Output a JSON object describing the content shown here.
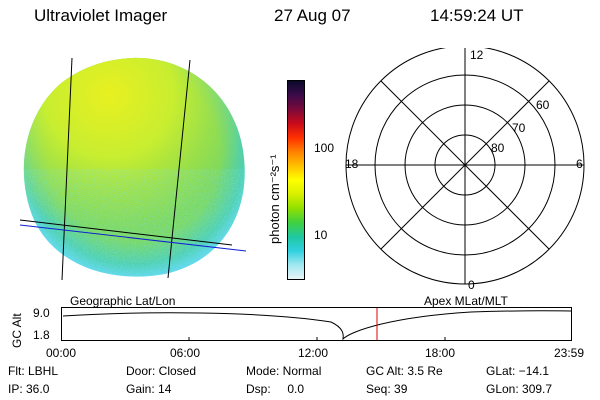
{
  "header": {
    "instrument": "Ultraviolet Imager",
    "date": "27 Aug 07",
    "time": "14:59:24 UT"
  },
  "colorbar": {
    "unit_label": "photon cm⁻²s⁻¹",
    "tick_100": "100",
    "tick_10": "10",
    "colors": [
      "#0a0a2a",
      "#3b0a4a",
      "#7a0a3a",
      "#c80a1a",
      "#ff3000",
      "#ff8000",
      "#ffc000",
      "#ffff00",
      "#d8f000",
      "#90e000",
      "#40d040",
      "#20c8a0",
      "#30d0e0",
      "#a0e8f0",
      "#e8f4f8"
    ]
  },
  "polar": {
    "mlt_top": "12",
    "mlt_left": "18",
    "mlt_right": "6",
    "mlt_bottom": "0",
    "lat_60": "60",
    "lat_70": "70",
    "lat_80": "80"
  },
  "labels": {
    "geo": "Geographic Lat/Lon",
    "apex": "Apex MLat/MLT"
  },
  "altitude_plot": {
    "axis_label": "GC Alt",
    "y_max": "9.0",
    "y_min": "1.8",
    "time_ticks": [
      "00:00",
      "06:00",
      "12:00",
      "18:00",
      "23:59"
    ],
    "marker_color": "#e00000"
  },
  "info": {
    "flt": "Flt: LBHL",
    "ip": "IP: 36.0",
    "door": "Door: Closed",
    "gain": "Gain: 14",
    "mode": "Mode: Normal",
    "dsp": "Dsp:     0.0",
    "gcalt": "GC Alt: 3.5 Re",
    "seq": "Seq: 39",
    "glat": "GLat: −14.1",
    "glon": "GLon: 309.7"
  }
}
